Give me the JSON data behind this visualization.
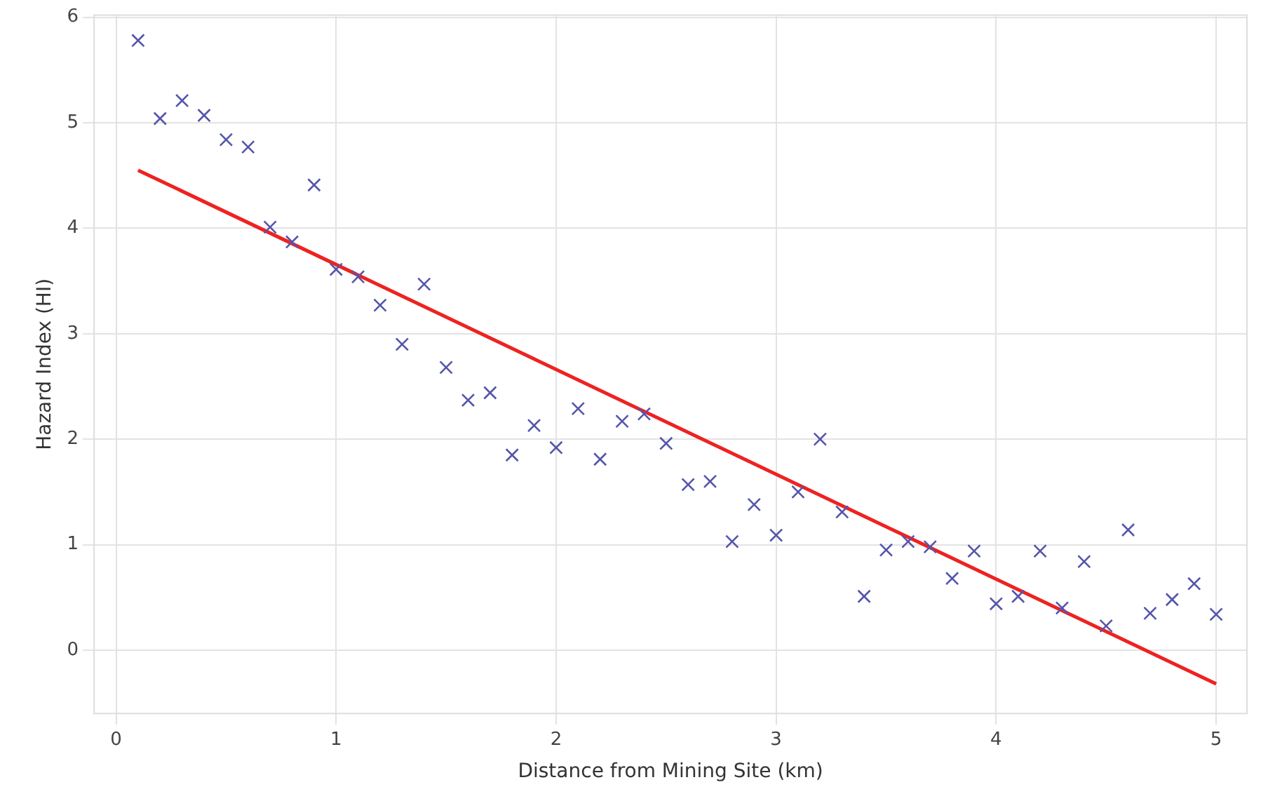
{
  "chart_data": {
    "type": "scatter",
    "xlabel": "Distance from Mining Site (km)",
    "ylabel": "Hazard Index (HI)",
    "xlim": [
      -0.1,
      5.14
    ],
    "ylim": [
      -0.6,
      6.02
    ],
    "xticks": [
      0,
      1,
      2,
      3,
      4,
      5
    ],
    "yticks": [
      0,
      1,
      2,
      3,
      4,
      5,
      6
    ],
    "grid": true,
    "series": [
      {
        "type": "scatter",
        "marker": "cross",
        "color": "#5555aa",
        "x": [
          0.1,
          0.2,
          0.3,
          0.4,
          0.5,
          0.6,
          0.7,
          0.8,
          0.9,
          1.0,
          1.1,
          1.2,
          1.3,
          1.4,
          1.5,
          1.6,
          1.7,
          1.8,
          1.9,
          2.0,
          2.1,
          2.2,
          2.3,
          2.4,
          2.5,
          2.6,
          2.7,
          2.8,
          2.9,
          3.0,
          3.1,
          3.2,
          3.3,
          3.4,
          3.5,
          3.6,
          3.7,
          3.8,
          3.9,
          4.0,
          4.1,
          4.2,
          4.3,
          4.4,
          4.5,
          4.6,
          4.7,
          4.8,
          4.9,
          5.0
        ],
        "values": [
          5.78,
          5.04,
          5.21,
          5.07,
          4.84,
          4.77,
          4.01,
          3.87,
          4.41,
          3.61,
          3.54,
          3.27,
          2.9,
          3.47,
          2.68,
          2.37,
          2.44,
          1.85,
          2.13,
          1.92,
          2.29,
          1.81,
          2.17,
          2.24,
          1.96,
          1.57,
          1.6,
          1.03,
          1.38,
          1.09,
          1.5,
          2.0,
          1.31,
          0.51,
          0.95,
          1.03,
          0.98,
          0.68,
          0.94,
          0.44,
          0.51,
          0.94,
          0.4,
          0.84,
          0.23,
          1.14,
          0.35,
          0.48,
          0.63,
          0.34
        ]
      },
      {
        "type": "line",
        "color": "#ee2222",
        "x": [
          0.1,
          5.0
        ],
        "values": [
          4.55,
          -0.32
        ]
      }
    ]
  }
}
